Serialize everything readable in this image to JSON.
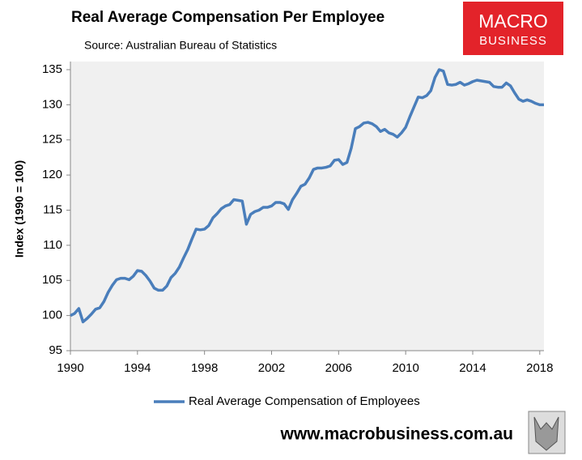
{
  "chart_data": {
    "type": "line",
    "title": "Real Average Compensation Per Employee",
    "subtitle": "Source: Australian Bureau of Statistics",
    "y_label": "Index (1990 = 100)",
    "xlim": [
      1990,
      2018.25
    ],
    "xticks": [
      1990,
      1994,
      1998,
      2002,
      2006,
      2010,
      2014,
      2018
    ],
    "ylim": [
      95,
      135
    ],
    "yticks": [
      95,
      100,
      105,
      110,
      115,
      120,
      125,
      130,
      135
    ],
    "grid": false,
    "legend": "bottom",
    "x": [
      1990,
      1990.25,
      1990.5,
      1990.75,
      1991,
      1991.25,
      1991.5,
      1991.75,
      1992,
      1992.25,
      1992.5,
      1992.75,
      1993,
      1993.25,
      1993.5,
      1993.75,
      1994,
      1994.25,
      1994.5,
      1994.75,
      1995,
      1995.25,
      1995.5,
      1995.75,
      1996,
      1996.25,
      1996.5,
      1996.75,
      1997,
      1997.25,
      1997.5,
      1997.75,
      1998,
      1998.25,
      1998.5,
      1998.75,
      1999,
      1999.25,
      1999.5,
      1999.75,
      2000,
      2000.25,
      2000.5,
      2000.75,
      2001,
      2001.25,
      2001.5,
      2001.75,
      2002,
      2002.25,
      2002.5,
      2002.75,
      2003,
      2003.25,
      2003.5,
      2003.75,
      2004,
      2004.25,
      2004.5,
      2004.75,
      2005,
      2005.25,
      2005.5,
      2005.75,
      2006,
      2006.25,
      2006.5,
      2006.75,
      2007,
      2007.25,
      2007.5,
      2007.75,
      2008,
      2008.25,
      2008.5,
      2008.75,
      2009,
      2009.25,
      2009.5,
      2009.75,
      2010,
      2010.25,
      2010.5,
      2010.75,
      2011,
      2011.25,
      2011.5,
      2011.75,
      2012,
      2012.25,
      2012.5,
      2012.75,
      2013,
      2013.25,
      2013.5,
      2013.75,
      2014,
      2014.25,
      2014.5,
      2014.75,
      2015,
      2015.25,
      2015.5,
      2015.75,
      2016,
      2016.25,
      2016.5,
      2016.75,
      2017,
      2017.25,
      2017.5,
      2017.75,
      2018,
      2018.25
    ],
    "series": [
      {
        "name": "Real Average Compensation of Employees",
        "color": "#4a7ebb",
        "values": [
          100.0,
          100.3,
          101.0,
          99.1,
          99.6,
          100.2,
          100.9,
          101.1,
          102.0,
          103.3,
          104.3,
          105.1,
          105.3,
          105.3,
          105.1,
          105.6,
          106.4,
          106.3,
          105.7,
          104.9,
          103.9,
          103.6,
          103.6,
          104.2,
          105.4,
          106.0,
          106.9,
          108.2,
          109.4,
          110.9,
          112.3,
          112.2,
          112.3,
          112.8,
          113.9,
          114.5,
          115.2,
          115.6,
          115.8,
          116.5,
          116.4,
          116.3,
          113.0,
          114.4,
          114.8,
          115.0,
          115.4,
          115.4,
          115.6,
          116.1,
          116.1,
          115.9,
          115.1,
          116.5,
          117.4,
          118.4,
          118.7,
          119.6,
          120.8,
          121.0,
          121.0,
          121.1,
          121.3,
          122.1,
          122.2,
          121.5,
          121.8,
          123.8,
          126.6,
          126.9,
          127.4,
          127.5,
          127.3,
          126.9,
          126.2,
          126.5,
          126.0,
          125.8,
          125.4,
          126.0,
          126.8,
          128.3,
          129.7,
          131.1,
          131.0,
          131.3,
          132.0,
          133.9,
          135.0,
          134.8,
          132.9,
          132.8,
          132.9,
          133.2,
          132.8,
          133.0,
          133.3,
          133.5,
          133.4,
          133.3,
          133.2,
          132.6,
          132.5,
          132.5,
          133.1,
          132.7,
          131.7,
          130.8,
          130.5,
          130.7,
          130.5,
          130.2,
          130.0,
          130.0
        ]
      }
    ]
  },
  "branding": {
    "logo": [
      "MACRO",
      "BUSINESS"
    ],
    "website": "www.macrobusiness.com.au"
  }
}
